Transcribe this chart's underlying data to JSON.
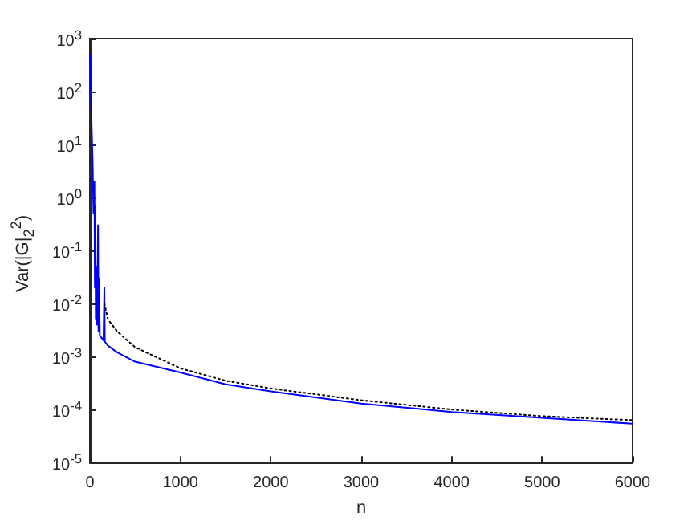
{
  "chart_data": {
    "type": "line",
    "xlabel": "n",
    "ylabel": "Var(|G|$_{2}$$^{2}$)",
    "log": "y",
    "grid": false,
    "marker": "none",
    "xlim": [
      0,
      6000
    ],
    "xticks": [
      0,
      1000,
      2000,
      3000,
      4000,
      5000,
      6000
    ],
    "ylim": [
      1e-05,
      1000
    ],
    "yticks": [
      {
        "value": 1e-05,
        "label": "10$^{-5}$"
      },
      {
        "value": 0.0001,
        "label": "10$^{-4}$"
      },
      {
        "value": 0.001,
        "label": "10$^{-3}$"
      },
      {
        "value": 0.01,
        "label": "10$^{-2}$"
      },
      {
        "value": 0.1,
        "label": "10$^{-1}$"
      },
      {
        "value": 1,
        "label": "10$^{0}$"
      },
      {
        "value": 10,
        "label": "10$^{1}$"
      },
      {
        "value": 100,
        "label": "10$^{2}$"
      },
      {
        "value": 1000,
        "label": "10$^{3}$"
      }
    ],
    "series": [
      {
        "color": "#0000ff",
        "line_style": "solid",
        "x": [
          5,
          10,
          20,
          30,
          40,
          50,
          55,
          60,
          65,
          70,
          80,
          90,
          95,
          100,
          110,
          150,
          160,
          165,
          200,
          300,
          500,
          1000,
          1500,
          2000,
          3000,
          4000,
          5000,
          6000
        ],
        "values": [
          500,
          100,
          20,
          5,
          0.5,
          2,
          0.02,
          0.7,
          0.005,
          0.05,
          0.004,
          0.3,
          0.003,
          0.03,
          0.0025,
          0.002,
          0.02,
          0.0019,
          0.0016,
          0.0012,
          0.0008,
          0.0005,
          0.0003,
          0.00022,
          0.00013,
          9e-05,
          7e-05,
          5.4e-05
        ]
      },
      {
        "color": "#000000",
        "line_style": "dotted",
        "x": [
          160,
          200,
          300,
          500,
          1000,
          1500,
          2000,
          3000,
          4000,
          5000,
          6000
        ],
        "values": [
          0.01,
          0.005,
          0.003,
          0.0015,
          0.0006,
          0.00035,
          0.00025,
          0.00015,
          0.0001,
          7.5e-05,
          6.3e-05
        ]
      }
    ]
  }
}
